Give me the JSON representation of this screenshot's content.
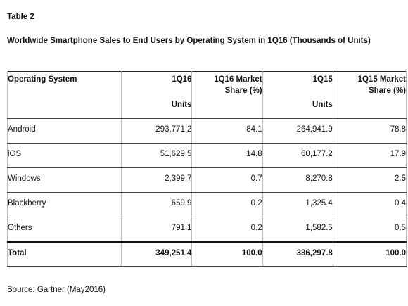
{
  "header": {
    "label": "Table 2",
    "title": "Worldwide Smartphone Sales to End Users by Operating System in 1Q16 (Thousands of Units)"
  },
  "table": {
    "columns": [
      {
        "label": "Operating System"
      },
      {
        "label": "1Q16",
        "unit": "Units"
      },
      {
        "label": "1Q16 Market Share (%)"
      },
      {
        "label": "1Q15",
        "unit": "Units"
      },
      {
        "label": "1Q15 Market Share (%)"
      }
    ],
    "rows": [
      [
        "Android",
        "293,771.2",
        "84.1",
        "264,941.9",
        "78.8"
      ],
      [
        "iOS",
        "51,629.5",
        "14.8",
        "60,177.2",
        "17.9"
      ],
      [
        "Windows",
        "2,399.7",
        "0.7",
        "8,270.8",
        "2.5"
      ],
      [
        "Blackberry",
        "659.9",
        "0.2",
        "1,325.4",
        "0.4"
      ],
      [
        "Others",
        "791.1",
        "0.2",
        "1,582.5",
        "0.5"
      ]
    ],
    "total": [
      "Total",
      "349,251.4",
      "100.0",
      "336,297.8",
      "100.0"
    ]
  },
  "source": "Source: Gartner (May2016)"
}
